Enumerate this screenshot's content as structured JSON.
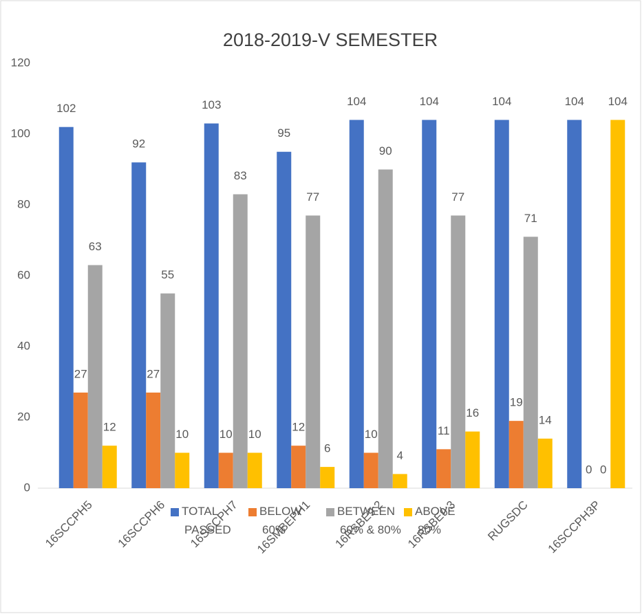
{
  "chart_data": {
    "type": "bar",
    "title": "2018-2019-V SEMESTER",
    "categories": [
      "16SCCPH5",
      "16SCCPH6",
      "16SCCPH7",
      "16SMBEPH1",
      "16RSBE9:2",
      "16RSBE9:3",
      "RUGSDC",
      "16SCCPH3P"
    ],
    "series": [
      {
        "name": "TOTAL PASSED",
        "color": "#4472c4",
        "values": [
          102,
          92,
          103,
          95,
          104,
          104,
          104,
          104
        ]
      },
      {
        "name": "BELOW 60%",
        "color": "#ed7d31",
        "values": [
          27,
          27,
          10,
          12,
          10,
          11,
          19,
          0
        ]
      },
      {
        "name": "BETWEEN 60% & 80%",
        "color": "#a5a5a5",
        "values": [
          63,
          55,
          83,
          77,
          90,
          77,
          71,
          0
        ]
      },
      {
        "name": "ABOVE 80%",
        "color": "#ffc000",
        "values": [
          12,
          10,
          10,
          6,
          4,
          16,
          14,
          104
        ]
      }
    ],
    "ylim": [
      0,
      120
    ],
    "yticks": [
      0,
      20,
      40,
      60,
      80,
      100,
      120
    ],
    "grid": false,
    "legend": "bottom"
  }
}
